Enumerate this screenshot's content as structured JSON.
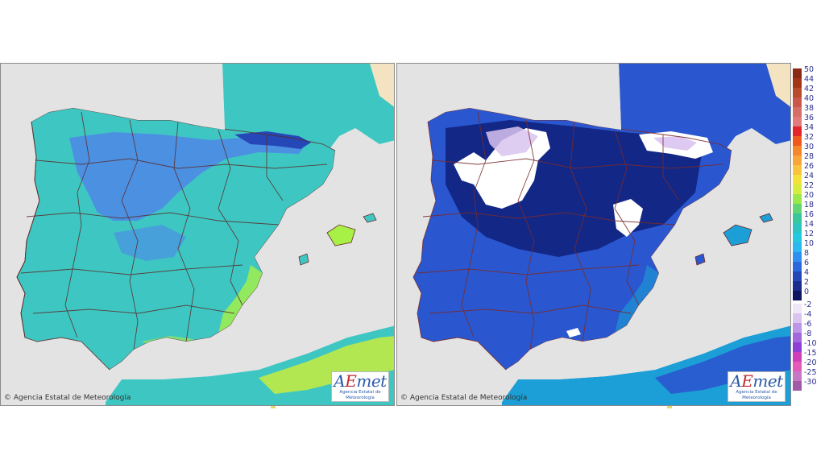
{
  "panels": [
    {
      "id": "left",
      "copyright": "© Agencia Estatal de Meteorología",
      "logo": "AEmet",
      "logo_subtitle": "Agencia Estatal de Meteorología",
      "land_color": "#3ec7c2",
      "cold_color": "#4f86e8",
      "warm_color": "#a7f045"
    },
    {
      "id": "right",
      "copyright": "© Agencia Estatal de Meteorología",
      "logo": "AEmet",
      "logo_subtitle": "Agencia Estatal de Meteorología",
      "land_color": "#2a57cf",
      "cold_color": "#0f1f7a",
      "warm_color": "#1c9fd6"
    }
  ],
  "legend": {
    "positive": [
      {
        "label": "50",
        "color": "#8b2a14"
      },
      {
        "label": "44",
        "color": "#a33416"
      },
      {
        "label": "42",
        "color": "#b94a2a"
      },
      {
        "label": "40",
        "color": "#c9584a"
      },
      {
        "label": "38",
        "color": "#d56e66"
      },
      {
        "label": "36",
        "color": "#e07c7c"
      },
      {
        "label": "34",
        "color": "#e3242b"
      },
      {
        "label": "32",
        "color": "#ef5a1c"
      },
      {
        "label": "30",
        "color": "#f5862a"
      },
      {
        "label": "28",
        "color": "#f8a53a"
      },
      {
        "label": "26",
        "color": "#f9c43c"
      },
      {
        "label": "24",
        "color": "#f4e23a"
      },
      {
        "label": "22",
        "color": "#d8ec3e"
      },
      {
        "label": "20",
        "color": "#9be84a"
      },
      {
        "label": "18",
        "color": "#5fd574"
      },
      {
        "label": "16",
        "color": "#37c79a"
      },
      {
        "label": "14",
        "color": "#2bc4c1"
      },
      {
        "label": "12",
        "color": "#22c9e0"
      },
      {
        "label": "10",
        "color": "#2bb7ef"
      },
      {
        "label": "8",
        "color": "#2e8ff0"
      },
      {
        "label": "6",
        "color": "#2a68dc"
      },
      {
        "label": "4",
        "color": "#2547b7"
      },
      {
        "label": "2",
        "color": "#1a2c8e"
      },
      {
        "label": "0",
        "color": "#0d1563"
      }
    ],
    "negative": [
      {
        "label": "-2",
        "color": "#efe6f8"
      },
      {
        "label": "-4",
        "color": "#d9c3ef"
      },
      {
        "label": "-6",
        "color": "#bd97e6"
      },
      {
        "label": "-8",
        "color": "#a369dc"
      },
      {
        "label": "-10",
        "color": "#8d3fd6"
      },
      {
        "label": "-15",
        "color": "#d13fb8"
      },
      {
        "label": "-20",
        "color": "#e45ab8"
      },
      {
        "label": "-25",
        "color": "#c478c6"
      },
      {
        "label": "-30",
        "color": "#a05aa8"
      }
    ]
  }
}
